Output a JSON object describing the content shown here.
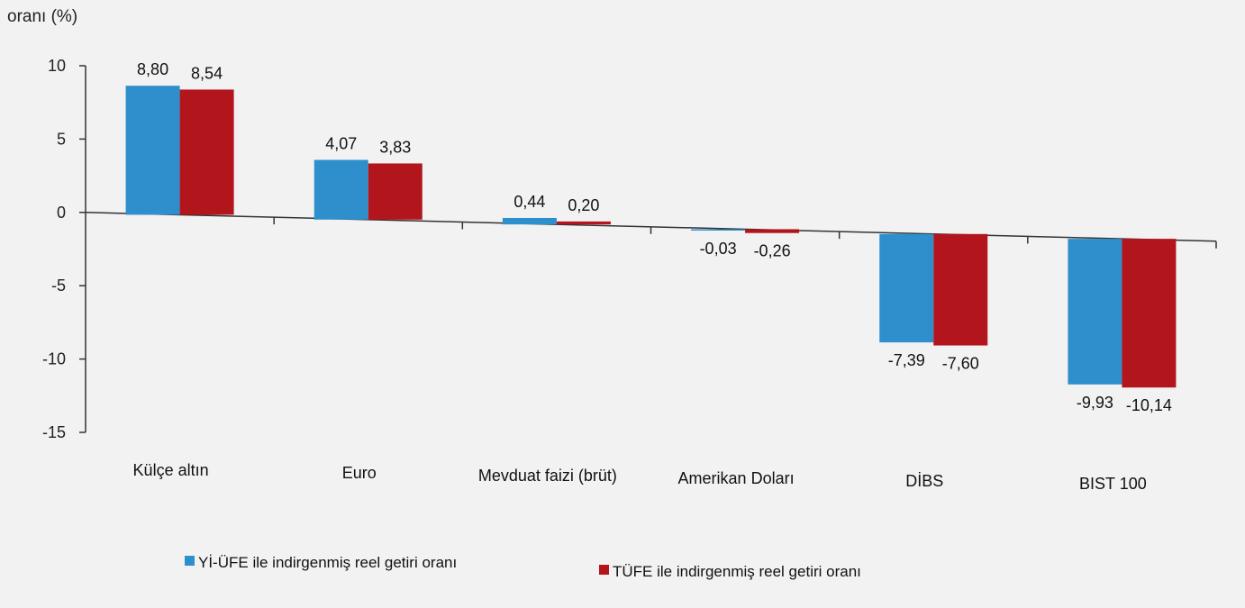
{
  "chart_data": {
    "type": "bar",
    "ylabel": "oranı (%)",
    "ylim": [
      -15,
      10
    ],
    "yticks": [
      10,
      5,
      0,
      -5,
      -10,
      -15
    ],
    "categories": [
      "Külçe altın",
      "Euro",
      "Mevduat faizi (brüt)",
      "Amerikan Doları",
      "DİBS",
      "BIST 100"
    ],
    "series": [
      {
        "name": "Yİ-ÜFE ile indirgenmiş reel getiri oranı",
        "color": "#2e8fcc",
        "values": [
          8.8,
          4.07,
          0.44,
          -0.03,
          -7.39,
          -9.93
        ],
        "labels": [
          "8,80",
          "4,07",
          "0,44",
          "-0,03",
          "-7,39",
          "-9,93"
        ]
      },
      {
        "name": "TÜFE ile indirgenmiş reel getiri oranı",
        "color": "#b3151d",
        "values": [
          8.54,
          3.83,
          0.2,
          -0.26,
          -7.6,
          -10.14
        ],
        "labels": [
          "8,54",
          "3,83",
          "0,20",
          "-0,26",
          "-7,60",
          "-10,14"
        ]
      }
    ],
    "legend_position": "bottom",
    "grid": false
  }
}
